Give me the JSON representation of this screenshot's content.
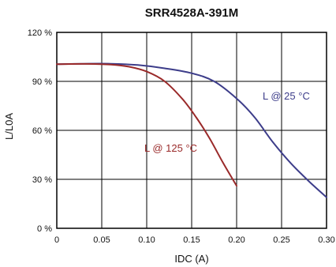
{
  "chart_data": {
    "type": "line",
    "title": "SRR4528A-391M",
    "xlabel": "IDC (A)",
    "ylabel": "L/L0A",
    "xlim": [
      0,
      0.3
    ],
    "ylim": [
      0,
      120
    ],
    "x_ticks": [
      0,
      0.05,
      0.1,
      0.15,
      0.2,
      0.25,
      0.3
    ],
    "x_tick_labels": [
      "0",
      "0.05",
      "0.10",
      "0.15",
      "0.20",
      "0.25",
      "0.30"
    ],
    "y_ticks": [
      0,
      30,
      60,
      90,
      120
    ],
    "y_tick_labels": [
      "0 %",
      "30 %",
      "60 %",
      "90 %",
      "120 %"
    ],
    "grid": true,
    "legend": "none",
    "series": [
      {
        "name": "L @ 25 °C",
        "color": "#3d3d8a",
        "x": [
          0,
          0.03,
          0.06,
          0.09,
          0.12,
          0.15,
          0.175,
          0.2,
          0.22,
          0.24,
          0.26,
          0.28,
          0.3
        ],
        "y": [
          100.5,
          100.8,
          100.8,
          100,
          98,
          95,
          90,
          79.5,
          68,
          53,
          40,
          29,
          19
        ]
      },
      {
        "name": "L @ 125 °C",
        "color": "#9a2a2a",
        "x": [
          0,
          0.03,
          0.06,
          0.08,
          0.1,
          0.12,
          0.14,
          0.155,
          0.17,
          0.185,
          0.2
        ],
        "y": [
          100.5,
          100.7,
          100.3,
          99,
          96,
          90,
          79,
          68,
          55,
          40,
          26
        ]
      }
    ]
  }
}
